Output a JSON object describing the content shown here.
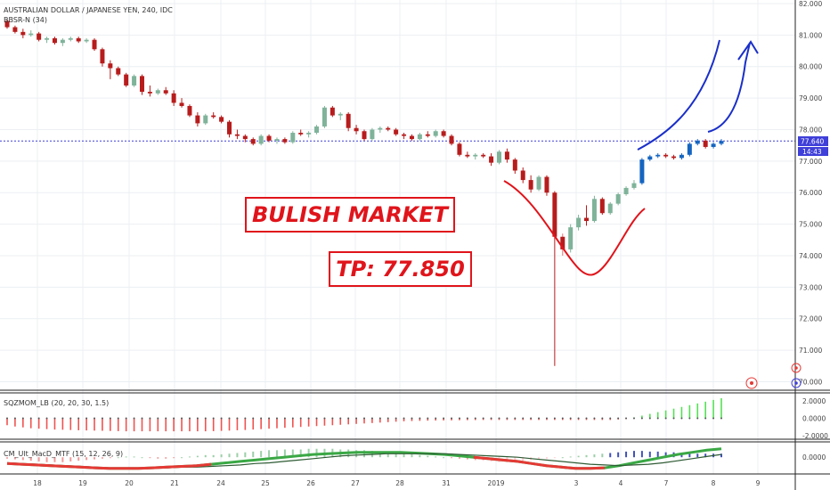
{
  "chart_data": {
    "type": "candlestick",
    "title": "AUSTRALIAN DOLLAR / JAPANESE YEN, 240, IDC",
    "indicator": "BBSR-N (34)",
    "price_axis": {
      "ylim": [
        69.9,
        82.0
      ],
      "ticks": [
        "82.000",
        "81.000",
        "80.000",
        "79.000",
        "78.000",
        "77.000",
        "76.000",
        "75.000",
        "74.000",
        "73.000",
        "72.000",
        "71.000",
        "70.000"
      ]
    },
    "last_price": "77.640",
    "countdown": "14:43",
    "x_ticks": [
      "18",
      "19",
      "20",
      "21",
      "24",
      "25",
      "26",
      "27",
      "28",
      "31",
      "2019",
      "3",
      "4",
      "7",
      "8",
      "9"
    ],
    "candles": [
      {
        "o": 81.45,
        "h": 81.5,
        "l": 81.2,
        "c": 81.25
      },
      {
        "o": 81.25,
        "h": 81.3,
        "l": 81.05,
        "c": 81.1
      },
      {
        "o": 81.1,
        "h": 81.2,
        "l": 80.9,
        "c": 81.0
      },
      {
        "o": 81.0,
        "h": 81.15,
        "l": 80.95,
        "c": 81.05
      },
      {
        "o": 81.05,
        "h": 81.1,
        "l": 80.8,
        "c": 80.85
      },
      {
        "o": 80.85,
        "h": 80.95,
        "l": 80.75,
        "c": 80.9
      },
      {
        "o": 80.9,
        "h": 80.95,
        "l": 80.7,
        "c": 80.75
      },
      {
        "o": 80.75,
        "h": 80.9,
        "l": 80.65,
        "c": 80.85
      },
      {
        "o": 80.85,
        "h": 80.95,
        "l": 80.8,
        "c": 80.9
      },
      {
        "o": 80.9,
        "h": 80.95,
        "l": 80.75,
        "c": 80.8
      },
      {
        "o": 80.8,
        "h": 80.9,
        "l": 80.75,
        "c": 80.85
      },
      {
        "o": 80.85,
        "h": 80.9,
        "l": 80.5,
        "c": 80.55
      },
      {
        "o": 80.55,
        "h": 80.6,
        "l": 80.0,
        "c": 80.1
      },
      {
        "o": 80.1,
        "h": 80.2,
        "l": 79.6,
        "c": 79.95
      },
      {
        "o": 79.95,
        "h": 80.0,
        "l": 79.7,
        "c": 79.75
      },
      {
        "o": 79.75,
        "h": 79.8,
        "l": 79.35,
        "c": 79.4
      },
      {
        "o": 79.4,
        "h": 79.75,
        "l": 79.35,
        "c": 79.7
      },
      {
        "o": 79.7,
        "h": 79.75,
        "l": 79.1,
        "c": 79.2
      },
      {
        "o": 79.2,
        "h": 79.4,
        "l": 79.05,
        "c": 79.15
      },
      {
        "o": 79.15,
        "h": 79.3,
        "l": 79.1,
        "c": 79.25
      },
      {
        "o": 79.25,
        "h": 79.35,
        "l": 79.1,
        "c": 79.15
      },
      {
        "o": 79.15,
        "h": 79.25,
        "l": 78.75,
        "c": 78.85
      },
      {
        "o": 78.85,
        "h": 79.0,
        "l": 78.7,
        "c": 78.75
      },
      {
        "o": 78.75,
        "h": 78.8,
        "l": 78.4,
        "c": 78.45
      },
      {
        "o": 78.45,
        "h": 78.55,
        "l": 78.1,
        "c": 78.2
      },
      {
        "o": 78.2,
        "h": 78.5,
        "l": 78.15,
        "c": 78.45
      },
      {
        "o": 78.45,
        "h": 78.55,
        "l": 78.35,
        "c": 78.4
      },
      {
        "o": 78.4,
        "h": 78.45,
        "l": 78.2,
        "c": 78.25
      },
      {
        "o": 78.25,
        "h": 78.3,
        "l": 77.75,
        "c": 77.85
      },
      {
        "o": 77.85,
        "h": 78.0,
        "l": 77.7,
        "c": 77.8
      },
      {
        "o": 77.8,
        "h": 77.85,
        "l": 77.6,
        "c": 77.7
      },
      {
        "o": 77.7,
        "h": 77.75,
        "l": 77.5,
        "c": 77.55
      },
      {
        "o": 77.55,
        "h": 77.85,
        "l": 77.5,
        "c": 77.8
      },
      {
        "o": 77.8,
        "h": 77.85,
        "l": 77.6,
        "c": 77.65
      },
      {
        "o": 77.65,
        "h": 77.75,
        "l": 77.55,
        "c": 77.7
      },
      {
        "o": 77.7,
        "h": 77.75,
        "l": 77.55,
        "c": 77.6
      },
      {
        "o": 77.6,
        "h": 77.95,
        "l": 77.55,
        "c": 77.9
      },
      {
        "o": 77.9,
        "h": 78.0,
        "l": 77.8,
        "c": 77.85
      },
      {
        "o": 77.85,
        "h": 77.95,
        "l": 77.75,
        "c": 77.9
      },
      {
        "o": 77.9,
        "h": 78.15,
        "l": 77.85,
        "c": 78.1
      },
      {
        "o": 78.1,
        "h": 78.75,
        "l": 78.05,
        "c": 78.7
      },
      {
        "o": 78.7,
        "h": 78.75,
        "l": 78.4,
        "c": 78.45
      },
      {
        "o": 78.45,
        "h": 78.55,
        "l": 78.3,
        "c": 78.5
      },
      {
        "o": 78.5,
        "h": 78.55,
        "l": 77.95,
        "c": 78.05
      },
      {
        "o": 78.05,
        "h": 78.15,
        "l": 77.85,
        "c": 77.95
      },
      {
        "o": 77.95,
        "h": 78.0,
        "l": 77.65,
        "c": 77.7
      },
      {
        "o": 77.7,
        "h": 78.05,
        "l": 77.65,
        "c": 78.0
      },
      {
        "o": 78.0,
        "h": 78.1,
        "l": 77.9,
        "c": 78.05
      },
      {
        "o": 78.05,
        "h": 78.1,
        "l": 77.95,
        "c": 78.0
      },
      {
        "o": 78.0,
        "h": 78.05,
        "l": 77.8,
        "c": 77.85
      },
      {
        "o": 77.85,
        "h": 77.9,
        "l": 77.7,
        "c": 77.8
      },
      {
        "o": 77.8,
        "h": 77.85,
        "l": 77.65,
        "c": 77.7
      },
      {
        "o": 77.7,
        "h": 77.9,
        "l": 77.65,
        "c": 77.85
      },
      {
        "o": 77.85,
        "h": 77.95,
        "l": 77.75,
        "c": 77.8
      },
      {
        "o": 77.8,
        "h": 78.0,
        "l": 77.75,
        "c": 77.95
      },
      {
        "o": 77.95,
        "h": 78.0,
        "l": 77.75,
        "c": 77.8
      },
      {
        "o": 77.8,
        "h": 77.85,
        "l": 77.5,
        "c": 77.55
      },
      {
        "o": 77.55,
        "h": 77.6,
        "l": 77.15,
        "c": 77.2
      },
      {
        "o": 77.2,
        "h": 77.3,
        "l": 77.1,
        "c": 77.15
      },
      {
        "o": 77.15,
        "h": 77.25,
        "l": 77.05,
        "c": 77.2
      },
      {
        "o": 77.2,
        "h": 77.25,
        "l": 77.1,
        "c": 77.15
      },
      {
        "o": 77.15,
        "h": 77.25,
        "l": 76.85,
        "c": 76.95
      },
      {
        "o": 76.95,
        "h": 77.35,
        "l": 76.9,
        "c": 77.3
      },
      {
        "o": 77.3,
        "h": 77.4,
        "l": 76.95,
        "c": 77.05
      },
      {
        "o": 77.05,
        "h": 77.1,
        "l": 76.6,
        "c": 76.7
      },
      {
        "o": 76.7,
        "h": 76.8,
        "l": 76.3,
        "c": 76.4
      },
      {
        "o": 76.4,
        "h": 76.55,
        "l": 76.0,
        "c": 76.1
      },
      {
        "o": 76.1,
        "h": 76.55,
        "l": 76.05,
        "c": 76.5
      },
      {
        "o": 76.5,
        "h": 76.55,
        "l": 75.9,
        "c": 76.0
      },
      {
        "o": 76.0,
        "h": 76.05,
        "l": 70.5,
        "c": 74.6
      },
      {
        "o": 74.6,
        "h": 74.7,
        "l": 74.0,
        "c": 74.2
      },
      {
        "o": 74.2,
        "h": 75.0,
        "l": 74.1,
        "c": 74.9
      },
      {
        "o": 74.9,
        "h": 75.3,
        "l": 74.8,
        "c": 75.2
      },
      {
        "o": 75.2,
        "h": 75.6,
        "l": 74.95,
        "c": 75.1
      },
      {
        "o": 75.1,
        "h": 75.9,
        "l": 75.05,
        "c": 75.8
      },
      {
        "o": 75.8,
        "h": 75.85,
        "l": 75.3,
        "c": 75.35
      },
      {
        "o": 75.35,
        "h": 75.7,
        "l": 75.3,
        "c": 75.65
      },
      {
        "o": 75.65,
        "h": 76.0,
        "l": 75.6,
        "c": 75.95
      },
      {
        "o": 75.95,
        "h": 76.2,
        "l": 75.9,
        "c": 76.15
      },
      {
        "o": 76.15,
        "h": 76.4,
        "l": 76.1,
        "c": 76.3
      },
      {
        "o": 76.3,
        "h": 77.1,
        "l": 76.25,
        "c": 77.05
      },
      {
        "o": 77.05,
        "h": 77.2,
        "l": 77.0,
        "c": 77.15
      },
      {
        "o": 77.15,
        "h": 77.25,
        "l": 77.1,
        "c": 77.2
      },
      {
        "o": 77.2,
        "h": 77.25,
        "l": 77.1,
        "c": 77.15
      },
      {
        "o": 77.15,
        "h": 77.2,
        "l": 77.05,
        "c": 77.1
      },
      {
        "o": 77.1,
        "h": 77.25,
        "l": 77.05,
        "c": 77.2
      },
      {
        "o": 77.2,
        "h": 77.6,
        "l": 77.15,
        "c": 77.55
      },
      {
        "o": 77.55,
        "h": 77.7,
        "l": 77.5,
        "c": 77.65
      },
      {
        "o": 77.65,
        "h": 77.7,
        "l": 77.4,
        "c": 77.45
      },
      {
        "o": 77.45,
        "h": 77.6,
        "l": 77.4,
        "c": 77.55
      },
      {
        "o": 77.55,
        "h": 77.7,
        "l": 77.5,
        "c": 77.64
      }
    ],
    "sqzmom": {
      "name": "SQZMOM_LB (20, 20, 30, 1.5)",
      "ylim": [
        -2.0,
        2.5
      ],
      "ticks": [
        "2.0000",
        "0.0000",
        "-2.0000"
      ],
      "values": [
        -0.8,
        -0.95,
        -1.05,
        -1.15,
        -1.2,
        -1.25,
        -1.3,
        -1.32,
        -1.35,
        -1.38,
        -1.4,
        -1.42,
        -1.44,
        -1.46,
        -1.48,
        -1.5,
        -1.5,
        -1.5,
        -1.5,
        -1.5,
        -1.5,
        -1.5,
        -1.5,
        -1.5,
        -1.5,
        -1.5,
        -1.48,
        -1.45,
        -1.42,
        -1.38,
        -1.35,
        -1.3,
        -1.25,
        -1.2,
        -1.15,
        -1.1,
        -1.05,
        -1.0,
        -0.95,
        -0.9,
        -0.85,
        -0.8,
        -0.75,
        -0.7,
        -0.65,
        -0.6,
        -0.55,
        -0.5,
        -0.45,
        -0.4,
        -0.35,
        -0.32,
        -0.3,
        -0.28,
        -0.26,
        -0.25,
        -0.24,
        -0.23,
        -0.22,
        -0.21,
        -0.2,
        -0.2,
        -0.2,
        -0.2,
        -0.2,
        -0.2,
        -0.2,
        -0.2,
        -0.2,
        -0.2,
        -0.2,
        -0.2,
        -0.2,
        -0.2,
        -0.2,
        -0.2,
        -0.2,
        -0.15,
        -0.1,
        0.1,
        0.3,
        0.5,
        0.7,
        0.9,
        1.1,
        1.3,
        1.5,
        1.7,
        1.9,
        2.1,
        2.3
      ]
    },
    "macd": {
      "name": "CM_Ult_MacD_MTF (15, 12, 26, 9)",
      "ylim": [
        -0.02,
        0.018
      ],
      "ticks": [
        "0.0000"
      ],
      "histogram": [
        -0.002,
        -0.003,
        -0.004,
        -0.005,
        -0.006,
        -0.007,
        -0.007,
        -0.007,
        -0.006,
        -0.005,
        -0.004,
        -0.003,
        -0.002,
        -0.001,
        0.0,
        0.001,
        0.001,
        0.0,
        -0.001,
        -0.002,
        -0.002,
        -0.001,
        0.0,
        0.001,
        0.002,
        0.003,
        0.003,
        0.004,
        0.005,
        0.006,
        0.007,
        0.008,
        0.009,
        0.01,
        0.01,
        0.011,
        0.011,
        0.011,
        0.012,
        0.012,
        0.012,
        0.012,
        0.011,
        0.011,
        0.01,
        0.01,
        0.009,
        0.008,
        0.007,
        0.006,
        0.005,
        0.004,
        0.003,
        0.002,
        0.001,
        0.0,
        -0.001,
        -0.002,
        -0.003,
        -0.004,
        -0.005,
        -0.006,
        -0.007,
        -0.007,
        -0.006,
        -0.005,
        -0.004,
        -0.003,
        -0.002,
        -0.001,
        0.0,
        0.001,
        0.002,
        0.003,
        0.004,
        0.005,
        0.006,
        0.007,
        0.008,
        0.009,
        0.009,
        0.008,
        0.008,
        0.007,
        0.007,
        0.006,
        0.006,
        0.005,
        0.005,
        0.005,
        0.005
      ],
      "macd_line": [
        -0.009,
        -0.01,
        -0.011,
        -0.012,
        -0.013,
        -0.014,
        -0.015,
        -0.016,
        -0.016,
        -0.016,
        -0.015,
        -0.014,
        -0.013,
        -0.012,
        -0.01,
        -0.008,
        -0.006,
        -0.004,
        -0.002,
        0.0,
        0.002,
        0.004,
        0.005,
        0.006,
        0.007,
        0.007,
        0.007,
        0.007,
        0.006,
        0.005,
        0.004,
        0.002,
        0.0,
        -0.002,
        -0.004,
        -0.006,
        -0.009,
        -0.012,
        -0.014,
        -0.016,
        -0.016,
        -0.015,
        -0.012,
        -0.008,
        -0.004,
        0.0,
        0.004,
        0.007,
        0.01,
        0.012
      ],
      "signal_line": [
        -0.008,
        -0.009,
        -0.01,
        -0.011,
        -0.012,
        -0.013,
        -0.014,
        -0.015,
        -0.015,
        -0.015,
        -0.015,
        -0.015,
        -0.014,
        -0.014,
        -0.013,
        -0.012,
        -0.011,
        -0.009,
        -0.008,
        -0.006,
        -0.004,
        -0.002,
        0.0,
        0.002,
        0.003,
        0.004,
        0.005,
        0.005,
        0.005,
        0.005,
        0.005,
        0.004,
        0.003,
        0.002,
        0.001,
        0.0,
        -0.002,
        -0.004,
        -0.006,
        -0.008,
        -0.01,
        -0.011,
        -0.012,
        -0.011,
        -0.01,
        -0.008,
        -0.005,
        -0.002,
        0.001,
        0.004
      ]
    },
    "annotations": [
      {
        "text": "BULISH MARKET",
        "color": "#e0141b"
      },
      {
        "text": "TP: 77.850",
        "color": "#e0141b"
      }
    ],
    "colors": {
      "bull": "#1565c0",
      "bear": "#b71c1c",
      "bull_early": "#7fb39a",
      "price_line": "#3f3fd9",
      "red_curve": "#e0141b",
      "blue_curve": "#1a2fc9",
      "macd_line": "#3aa845",
      "signal_line": "#e53935",
      "sq_pos": "#55e055",
      "sq_neg": "#ef5350"
    }
  }
}
